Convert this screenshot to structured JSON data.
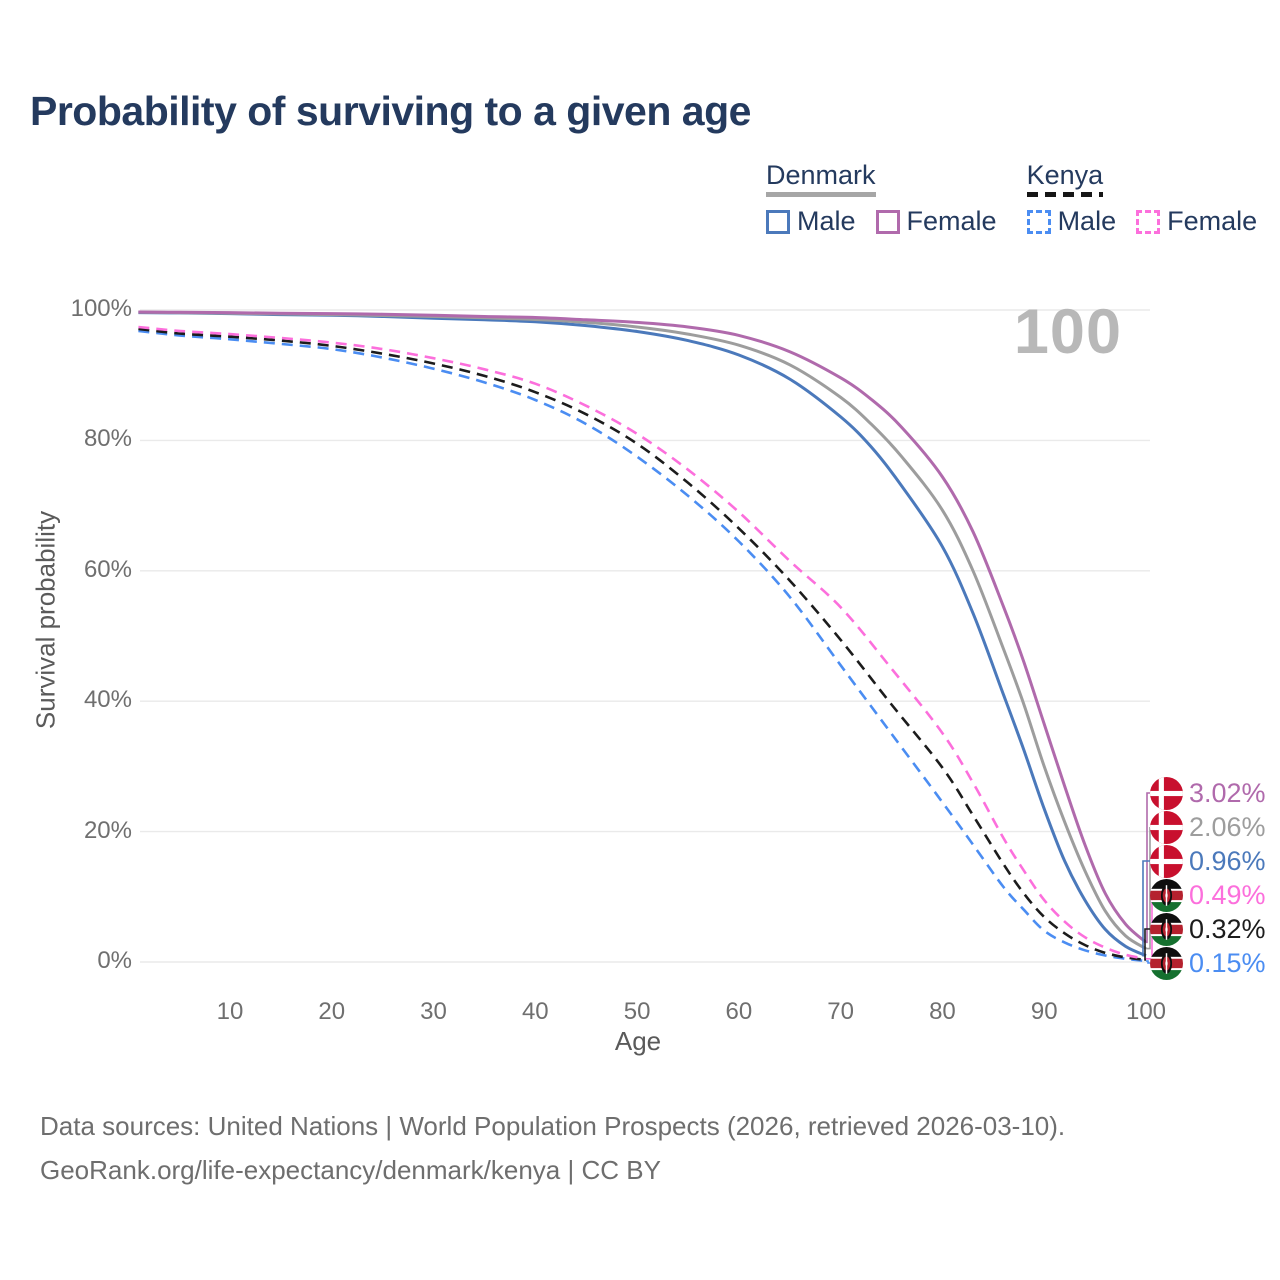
{
  "title": "Probability of surviving to a given age",
  "annotation": "100",
  "legend": {
    "groups": [
      {
        "country": "Denmark",
        "line_style": "solid",
        "underline_color": "#a6a6a6",
        "items": [
          {
            "label": "Male",
            "color": "#4b79bb"
          },
          {
            "label": "Female",
            "color": "#b06aac"
          }
        ]
      },
      {
        "country": "Kenya",
        "line_style": "dashed",
        "underline_color": "#161616",
        "items": [
          {
            "label": "Male",
            "color": "#4b8df2"
          },
          {
            "label": "Female",
            "color": "#fc6fdc"
          }
        ]
      }
    ]
  },
  "chart_data": {
    "type": "line",
    "title": "Probability of surviving to a given age",
    "xlabel": "Age",
    "ylabel": "Survival probability",
    "xlim": [
      0,
      100
    ],
    "ylim": [
      0,
      100
    ],
    "grid": "horizontal",
    "legend_position": "top-right",
    "x_ticks": [
      {
        "value": 10,
        "label": "10"
      },
      {
        "value": 20,
        "label": "20"
      },
      {
        "value": 30,
        "label": "30"
      },
      {
        "value": 40,
        "label": "40"
      },
      {
        "value": 50,
        "label": "50"
      },
      {
        "value": 60,
        "label": "60"
      },
      {
        "value": 70,
        "label": "70"
      },
      {
        "value": 80,
        "label": "80"
      },
      {
        "value": 90,
        "label": "90"
      },
      {
        "value": 100,
        "label": "100"
      }
    ],
    "y_ticks": [
      {
        "value": 0,
        "label": "0%"
      },
      {
        "value": 20,
        "label": "20%"
      },
      {
        "value": 40,
        "label": "40%"
      },
      {
        "value": 60,
        "label": "60%"
      },
      {
        "value": 80,
        "label": "80%"
      },
      {
        "value": 100,
        "label": "100%"
      }
    ],
    "series": [
      {
        "name": "Denmark Female",
        "country": "Denmark",
        "sex": "Female",
        "flag": "dk",
        "color": "#b06aac",
        "line_style": "solid",
        "end_label": "3.02%",
        "points": [
          [
            1,
            99.7
          ],
          [
            5,
            99.65
          ],
          [
            10,
            99.6
          ],
          [
            15,
            99.5
          ],
          [
            20,
            99.45
          ],
          [
            25,
            99.35
          ],
          [
            30,
            99.2
          ],
          [
            35,
            99.0
          ],
          [
            40,
            98.85
          ],
          [
            45,
            98.5
          ],
          [
            50,
            98.1
          ],
          [
            55,
            97.4
          ],
          [
            60,
            96.1
          ],
          [
            65,
            93.6
          ],
          [
            70,
            89.6
          ],
          [
            73,
            86.3
          ],
          [
            76,
            82.0
          ],
          [
            80,
            74.4
          ],
          [
            83,
            66.0
          ],
          [
            86,
            54.5
          ],
          [
            88,
            46.0
          ],
          [
            90,
            36.5
          ],
          [
            92,
            27.0
          ],
          [
            94,
            18.0
          ],
          [
            96,
            10.5
          ],
          [
            98,
            5.8
          ],
          [
            100,
            3.02
          ]
        ]
      },
      {
        "name": "Denmark Total",
        "country": "Denmark",
        "sex": "Total",
        "flag": "dk",
        "color": "#9d9d9d",
        "line_style": "solid",
        "end_label": "2.06%",
        "points": [
          [
            1,
            99.65
          ],
          [
            5,
            99.6
          ],
          [
            10,
            99.5
          ],
          [
            15,
            99.4
          ],
          [
            20,
            99.3
          ],
          [
            25,
            99.15
          ],
          [
            30,
            99.0
          ],
          [
            35,
            98.8
          ],
          [
            40,
            98.55
          ],
          [
            45,
            98.1
          ],
          [
            50,
            97.4
          ],
          [
            55,
            96.3
          ],
          [
            60,
            94.6
          ],
          [
            65,
            91.6
          ],
          [
            70,
            86.6
          ],
          [
            73,
            82.5
          ],
          [
            76,
            77.5
          ],
          [
            80,
            69.3
          ],
          [
            83,
            60.0
          ],
          [
            86,
            48.0
          ],
          [
            88,
            39.5
          ],
          [
            90,
            30.0
          ],
          [
            92,
            21.5
          ],
          [
            94,
            14.0
          ],
          [
            96,
            7.8
          ],
          [
            98,
            4.0
          ],
          [
            100,
            2.06
          ]
        ]
      },
      {
        "name": "Denmark Male",
        "country": "Denmark",
        "sex": "Male",
        "flag": "dk",
        "color": "#4b79bb",
        "line_style": "solid",
        "end_label": "0.96%",
        "points": [
          [
            1,
            99.6
          ],
          [
            5,
            99.55
          ],
          [
            10,
            99.45
          ],
          [
            15,
            99.3
          ],
          [
            20,
            99.2
          ],
          [
            25,
            99.0
          ],
          [
            30,
            98.75
          ],
          [
            35,
            98.5
          ],
          [
            40,
            98.2
          ],
          [
            45,
            97.6
          ],
          [
            50,
            96.7
          ],
          [
            55,
            95.3
          ],
          [
            60,
            93.1
          ],
          [
            65,
            89.4
          ],
          [
            70,
            83.6
          ],
          [
            73,
            79.0
          ],
          [
            76,
            73.0
          ],
          [
            80,
            63.7
          ],
          [
            83,
            53.5
          ],
          [
            86,
            41.0
          ],
          [
            88,
            32.5
          ],
          [
            90,
            23.5
          ],
          [
            92,
            15.5
          ],
          [
            94,
            9.5
          ],
          [
            96,
            5.0
          ],
          [
            98,
            2.4
          ],
          [
            100,
            0.96
          ]
        ]
      },
      {
        "name": "Kenya Female",
        "country": "Kenya",
        "sex": "Female",
        "flag": "ke",
        "color": "#fc6fdc",
        "line_style": "dashed",
        "end_label": "0.49%",
        "points": [
          [
            1,
            97.4
          ],
          [
            5,
            96.8
          ],
          [
            10,
            96.3
          ],
          [
            15,
            95.7
          ],
          [
            20,
            95.0
          ],
          [
            25,
            94.0
          ],
          [
            30,
            92.6
          ],
          [
            35,
            90.9
          ],
          [
            40,
            88.7
          ],
          [
            45,
            85.3
          ],
          [
            50,
            81.0
          ],
          [
            55,
            75.5
          ],
          [
            60,
            69.0
          ],
          [
            65,
            61.5
          ],
          [
            70,
            54.4
          ],
          [
            75,
            45.0
          ],
          [
            80,
            35.1
          ],
          [
            83,
            27.5
          ],
          [
            86,
            19.0
          ],
          [
            88,
            14.0
          ],
          [
            90,
            9.5
          ],
          [
            92,
            6.2
          ],
          [
            94,
            3.8
          ],
          [
            96,
            2.2
          ],
          [
            98,
            1.1
          ],
          [
            100,
            0.49
          ]
        ]
      },
      {
        "name": "Kenya Total",
        "country": "Kenya",
        "sex": "Total",
        "flag": "ke",
        "color": "#1c1c1c",
        "line_style": "dashed",
        "end_label": "0.32%",
        "points": [
          [
            1,
            97.1
          ],
          [
            5,
            96.4
          ],
          [
            10,
            95.9
          ],
          [
            15,
            95.3
          ],
          [
            20,
            94.5
          ],
          [
            25,
            93.3
          ],
          [
            30,
            91.8
          ],
          [
            35,
            89.9
          ],
          [
            40,
            87.4
          ],
          [
            45,
            84.0
          ],
          [
            50,
            79.5
          ],
          [
            55,
            73.5
          ],
          [
            60,
            66.5
          ],
          [
            65,
            58.5
          ],
          [
            70,
            49.4
          ],
          [
            75,
            39.5
          ],
          [
            80,
            29.8
          ],
          [
            83,
            22.5
          ],
          [
            86,
            15.0
          ],
          [
            88,
            10.5
          ],
          [
            90,
            6.9
          ],
          [
            92,
            4.4
          ],
          [
            94,
            2.6
          ],
          [
            96,
            1.4
          ],
          [
            98,
            0.7
          ],
          [
            100,
            0.32
          ]
        ]
      },
      {
        "name": "Kenya Male",
        "country": "Kenya",
        "sex": "Male",
        "flag": "ke",
        "color": "#4b8df2",
        "line_style": "dashed",
        "end_label": "0.15%",
        "points": [
          [
            1,
            96.8
          ],
          [
            5,
            96.1
          ],
          [
            10,
            95.5
          ],
          [
            15,
            94.8
          ],
          [
            20,
            94.0
          ],
          [
            25,
            92.7
          ],
          [
            30,
            91.0
          ],
          [
            35,
            88.9
          ],
          [
            40,
            86.2
          ],
          [
            45,
            82.5
          ],
          [
            50,
            77.5
          ],
          [
            55,
            71.5
          ],
          [
            60,
            64.5
          ],
          [
            65,
            56.0
          ],
          [
            70,
            45.5
          ],
          [
            75,
            35.0
          ],
          [
            80,
            24.5
          ],
          [
            83,
            18.0
          ],
          [
            86,
            11.5
          ],
          [
            88,
            8.0
          ],
          [
            90,
            4.8
          ],
          [
            92,
            3.0
          ],
          [
            94,
            1.8
          ],
          [
            96,
            1.0
          ],
          [
            98,
            0.5
          ],
          [
            100,
            0.15
          ]
        ]
      }
    ]
  },
  "colors": {
    "title": "#243a5e",
    "axis_text": "#6f6f6f",
    "gridline": "#eaeaea",
    "annotation": "#b8b8b8",
    "footer": "#6e6e6e",
    "denmark_flag_red": "#c8102e",
    "kenya_flag_red": "#b5212e",
    "kenya_flag_green": "#15702f"
  },
  "footer": {
    "line1": "Data sources: United Nations | World Population Prospects (2026, retrieved 2026-03-10).",
    "line2": "GeoRank.org/life-expectancy/denmark/kenya | CC BY"
  }
}
